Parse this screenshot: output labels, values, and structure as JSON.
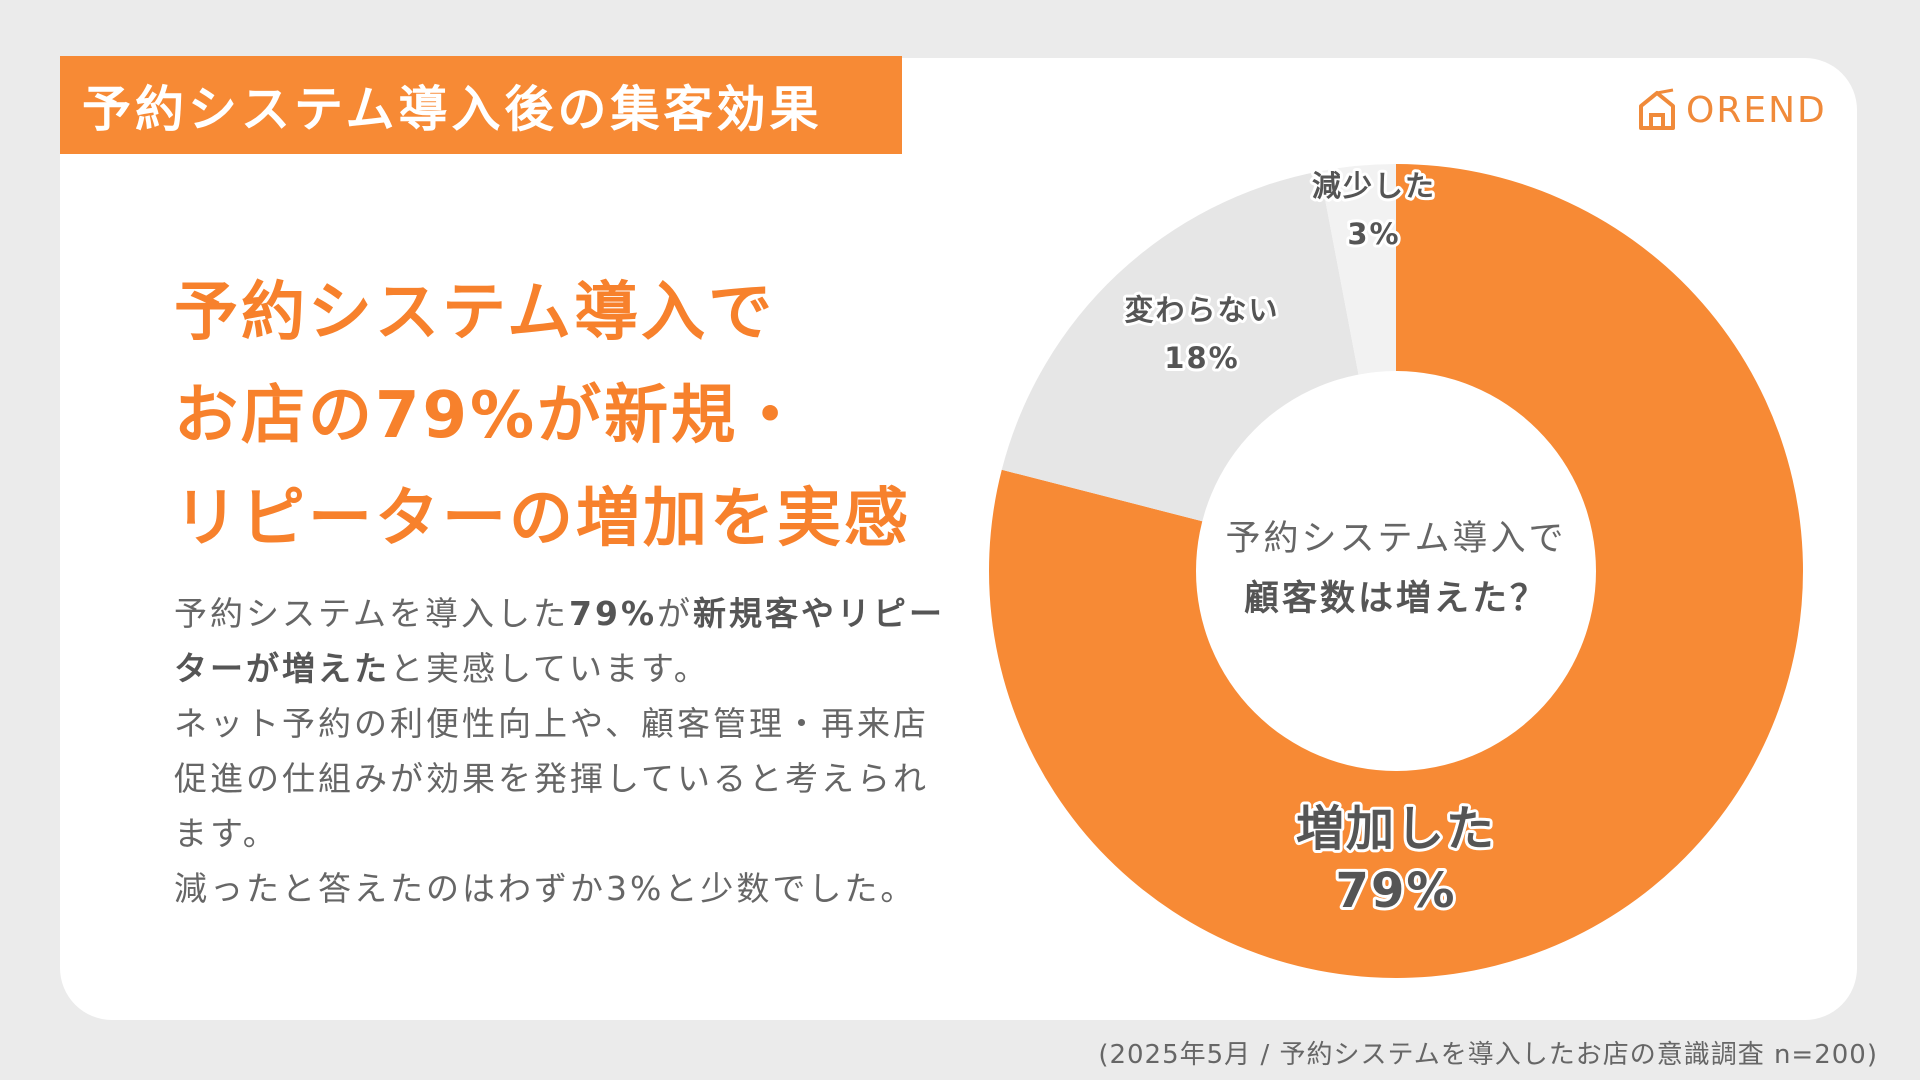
{
  "banner": {
    "title": "予約システム導入後の集客効果"
  },
  "logo": {
    "text": "OREND"
  },
  "headline": {
    "lines": [
      "予約システム導入で",
      "お店の79%が新規・",
      "リピーターの増加を実感"
    ]
  },
  "body": {
    "p1_a": "予約システムを導入した",
    "p1_b": "79%",
    "p1_c": "が",
    "p1_d": "新規客やリピーターが増えた",
    "p1_e": "と実感しています。",
    "p2": "ネット予約の利便性向上や、顧客管理・再来店促進の仕組みが効果を発揮していると考えられます。",
    "p3": "減ったと答えたのはわずか3%と少数でした。"
  },
  "chart_data": {
    "type": "pie",
    "donut": true,
    "center_text": [
      "予約システム導入で",
      "顧客数は増えた？"
    ],
    "slices": [
      {
        "label": "増加した",
        "value": 79,
        "display": "79%",
        "color": "#f78a35"
      },
      {
        "label": "変わらない",
        "value": 18,
        "display": "18%",
        "color": "#e6e6e6"
      },
      {
        "label": "減少した",
        "value": 3,
        "display": "3%",
        "color": "#f2f2f2"
      }
    ]
  },
  "source": {
    "text": "(2025年5月 / 予約システムを導入したお店の意識調査 n=200)"
  },
  "colors": {
    "accent": "#f78a35",
    "background": "#ebebeb",
    "card": "#ffffff"
  }
}
